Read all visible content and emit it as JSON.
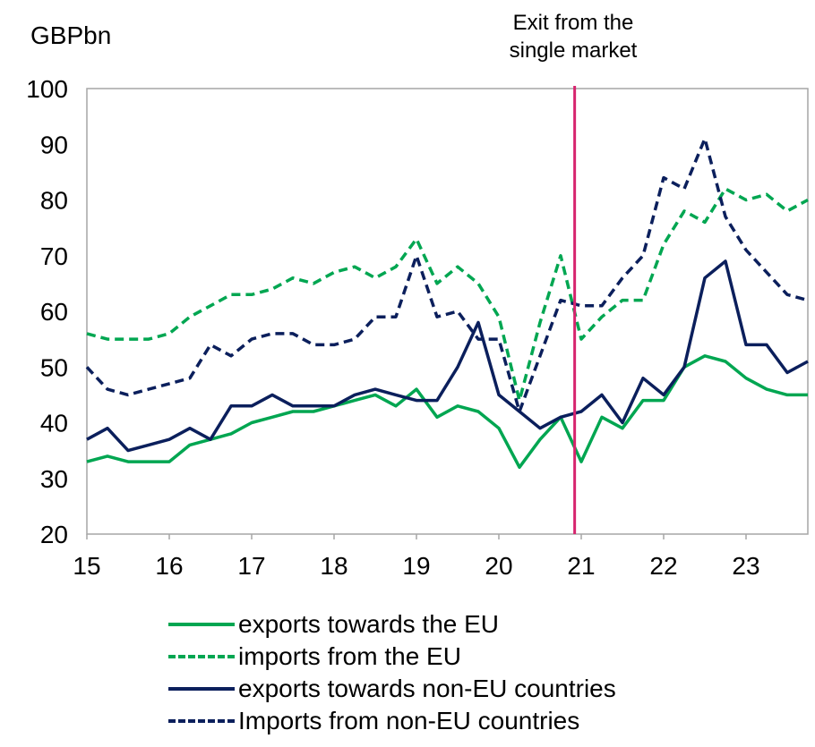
{
  "chart_data": {
    "type": "line",
    "ylabel": "GBPbn",
    "xlabel": "",
    "ylim": [
      20,
      100
    ],
    "yticks": [
      20,
      30,
      40,
      50,
      60,
      70,
      80,
      90,
      100
    ],
    "xlim": [
      15,
      23.75
    ],
    "xtick_values": [
      15,
      16,
      17,
      18,
      19,
      20,
      21,
      22,
      23
    ],
    "xtick_labels": [
      "15",
      "16",
      "17",
      "18",
      "19",
      "20",
      "21",
      "22",
      "23"
    ],
    "grid": false,
    "legend_position": "bottom",
    "annotation": {
      "x": 20.92,
      "label_line1": "Exit from the",
      "label_line2": "single market",
      "color": "#d6246e"
    },
    "x": [
      15,
      15.25,
      15.5,
      15.75,
      16,
      16.25,
      16.5,
      16.75,
      17,
      17.25,
      17.5,
      17.75,
      18,
      18.25,
      18.5,
      18.75,
      19,
      19.25,
      19.5,
      19.75,
      20,
      20.25,
      20.5,
      20.75,
      21,
      21.25,
      21.5,
      21.75,
      22,
      22.25,
      22.5,
      22.75,
      23,
      23.25,
      23.5,
      23.75
    ],
    "series": [
      {
        "name": "exports towards the EU",
        "color": "#00a651",
        "dash": false,
        "values": [
          33,
          34,
          33,
          33,
          33,
          36,
          37,
          38,
          40,
          41,
          42,
          42,
          43,
          44,
          45,
          43,
          46,
          41,
          43,
          42,
          39,
          32,
          37,
          41,
          33,
          41,
          39,
          44,
          44,
          50,
          52,
          51,
          48,
          46,
          45,
          45
        ]
      },
      {
        "name": "imports from the EU",
        "color": "#00a651",
        "dash": true,
        "values": [
          56,
          55,
          55,
          55,
          56,
          59,
          61,
          63,
          63,
          64,
          66,
          65,
          67,
          68,
          66,
          68,
          73,
          65,
          68,
          65,
          59,
          44,
          58,
          70,
          55,
          59,
          62,
          62,
          72,
          78,
          76,
          82,
          80,
          81,
          78,
          80
        ]
      },
      {
        "name": "exports towards non-EU countries",
        "color": "#0b1f5c",
        "dash": false,
        "values": [
          37,
          39,
          35,
          36,
          37,
          39,
          37,
          43,
          43,
          45,
          43,
          43,
          43,
          45,
          46,
          45,
          44,
          44,
          50,
          58,
          45,
          42,
          39,
          41,
          42,
          45,
          40,
          48,
          45,
          50,
          66,
          69,
          54,
          54,
          49,
          51
        ]
      },
      {
        "name": "Imports from non-EU countries",
        "color": "#0b1f5c",
        "dash": true,
        "values": [
          50,
          46,
          45,
          46,
          47,
          48,
          54,
          52,
          55,
          56,
          56,
          54,
          54,
          55,
          59,
          59,
          70,
          59,
          60,
          55,
          55,
          42,
          52,
          62,
          61,
          61,
          66,
          70,
          84,
          82,
          91,
          77,
          71,
          67,
          63,
          62
        ]
      }
    ]
  }
}
